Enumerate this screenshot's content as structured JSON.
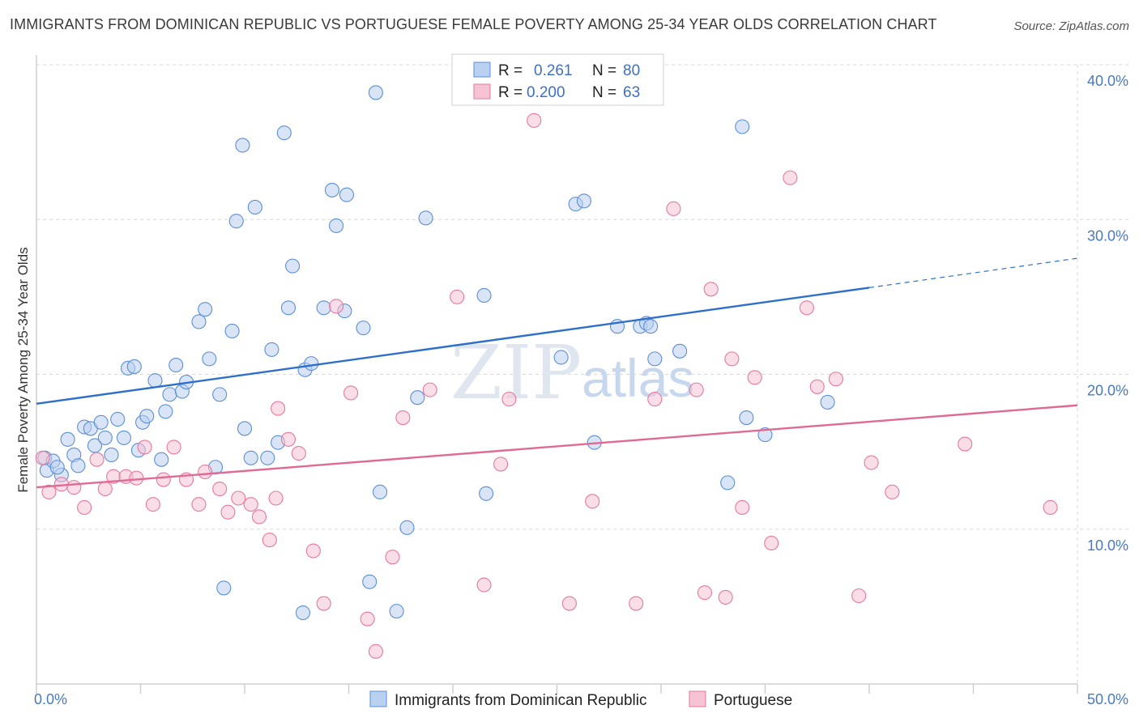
{
  "title": "IMMIGRANTS FROM DOMINICAN REPUBLIC VS PORTUGUESE FEMALE POVERTY AMONG 25-34 YEAR OLDS CORRELATION CHART",
  "source": "Source: ZipAtlas.com",
  "watermark": {
    "part1": "ZIP",
    "part2": "atlas"
  },
  "colors": {
    "blue": "#5b8fd6",
    "blue_fill": "#b9d0f1",
    "blue_line": "#2f6fcc",
    "pink": "#e6789e",
    "pink_fill": "#f6c3d4",
    "pink_line": "#e06a94",
    "grid": "#d9d9d9",
    "tick_text": "#4a78c2"
  },
  "legend": {
    "r_label": "R =",
    "n_label": "N =",
    "rows": [
      {
        "r": "0.261",
        "n": "80",
        "color": "blue"
      },
      {
        "r": "0.200",
        "n": "63",
        "color": "pink"
      }
    ]
  },
  "bottom_legend": [
    {
      "label": "Immigrants from Dominican Republic",
      "color": "blue"
    },
    {
      "label": "Portuguese",
      "color": "pink"
    }
  ],
  "chart_data": {
    "type": "scatter",
    "title": "IMMIGRANTS FROM DOMINICAN REPUBLIC VS PORTUGUESE FEMALE POVERTY AMONG 25-34 YEAR OLDS CORRELATION CHART",
    "xlabel": "",
    "ylabel": "Female Poverty Among 25-34 Year Olds",
    "xlim": [
      0,
      50
    ],
    "ylim": [
      0,
      40
    ],
    "x_ticks": [
      "0.0%",
      "50.0%"
    ],
    "y_ticks": [
      {
        "value": 10,
        "label": "10.0%"
      },
      {
        "value": 20,
        "label": "20.0%"
      },
      {
        "value": 30,
        "label": "30.0%"
      },
      {
        "value": 40,
        "label": "40.0%"
      }
    ],
    "grid": true,
    "legend_position": "top-center",
    "series": [
      {
        "name": "Immigrants from Dominican Republic",
        "color": "blue",
        "r": 0.261,
        "n": 80,
        "trend": {
          "x0": 0,
          "y0": 18.1,
          "x1": 40,
          "y1": 25.6,
          "dash_to_x": 50,
          "dash_to_y": 27.5
        },
        "points": [
          [
            0.4,
            14.6
          ],
          [
            0.5,
            13.8
          ],
          [
            0.8,
            14.4
          ],
          [
            1.2,
            13.5
          ],
          [
            1.0,
            14.0
          ],
          [
            1.5,
            15.8
          ],
          [
            1.8,
            14.8
          ],
          [
            2.0,
            14.1
          ],
          [
            2.3,
            16.6
          ],
          [
            2.6,
            16.5
          ],
          [
            2.8,
            15.4
          ],
          [
            3.1,
            16.9
          ],
          [
            3.3,
            15.9
          ],
          [
            3.6,
            14.8
          ],
          [
            3.9,
            17.1
          ],
          [
            4.2,
            15.9
          ],
          [
            4.4,
            20.4
          ],
          [
            4.7,
            20.5
          ],
          [
            4.9,
            15.1
          ],
          [
            5.1,
            16.9
          ],
          [
            5.3,
            17.3
          ],
          [
            5.7,
            19.6
          ],
          [
            6.0,
            14.5
          ],
          [
            6.2,
            17.6
          ],
          [
            6.4,
            18.7
          ],
          [
            6.7,
            20.6
          ],
          [
            7.0,
            18.9
          ],
          [
            7.2,
            19.5
          ],
          [
            7.8,
            23.4
          ],
          [
            8.1,
            24.2
          ],
          [
            8.3,
            21.0
          ],
          [
            8.6,
            14.0
          ],
          [
            8.8,
            18.7
          ],
          [
            9.0,
            6.2
          ],
          [
            9.4,
            22.8
          ],
          [
            9.6,
            29.9
          ],
          [
            9.9,
            34.8
          ],
          [
            10.3,
            14.6
          ],
          [
            10.5,
            30.8
          ],
          [
            10.0,
            16.5
          ],
          [
            11.1,
            14.6
          ],
          [
            11.3,
            21.6
          ],
          [
            11.6,
            15.6
          ],
          [
            11.9,
            35.6
          ],
          [
            12.3,
            27.0
          ],
          [
            12.1,
            24.3
          ],
          [
            12.9,
            20.3
          ],
          [
            13.2,
            20.7
          ],
          [
            12.8,
            4.6
          ],
          [
            13.8,
            24.3
          ],
          [
            14.2,
            31.9
          ],
          [
            14.4,
            29.6
          ],
          [
            14.8,
            24.1
          ],
          [
            14.9,
            31.6
          ],
          [
            15.7,
            23.0
          ],
          [
            16.0,
            6.6
          ],
          [
            16.3,
            38.2
          ],
          [
            16.5,
            12.4
          ],
          [
            17.3,
            4.7
          ],
          [
            17.8,
            10.1
          ],
          [
            18.3,
            18.5
          ],
          [
            18.7,
            30.1
          ],
          [
            21.5,
            25.1
          ],
          [
            21.6,
            12.3
          ],
          [
            25.2,
            21.1
          ],
          [
            25.9,
            31.0
          ],
          [
            26.3,
            31.2
          ],
          [
            26.8,
            15.6
          ],
          [
            27.9,
            23.1
          ],
          [
            29.0,
            23.1
          ],
          [
            29.3,
            23.3
          ],
          [
            29.5,
            23.1
          ],
          [
            29.7,
            21.0
          ],
          [
            30.9,
            21.5
          ],
          [
            33.2,
            13.0
          ],
          [
            33.9,
            36.0
          ],
          [
            34.1,
            17.2
          ],
          [
            35.0,
            16.1
          ],
          [
            38.0,
            18.2
          ],
          [
            21.1,
            38.6
          ]
        ]
      },
      {
        "name": "Portuguese",
        "color": "pink",
        "r": 0.2,
        "n": 63,
        "trend": {
          "x0": 0,
          "y0": 12.7,
          "x1": 50,
          "y1": 18.0
        },
        "points": [
          [
            0.3,
            14.6
          ],
          [
            0.6,
            12.4
          ],
          [
            1.2,
            12.9
          ],
          [
            1.8,
            12.7
          ],
          [
            2.3,
            11.4
          ],
          [
            2.9,
            14.5
          ],
          [
            3.3,
            12.6
          ],
          [
            3.7,
            13.4
          ],
          [
            4.3,
            13.4
          ],
          [
            4.8,
            13.3
          ],
          [
            5.2,
            15.3
          ],
          [
            5.6,
            11.6
          ],
          [
            6.1,
            13.2
          ],
          [
            6.6,
            15.3
          ],
          [
            7.2,
            13.2
          ],
          [
            7.8,
            11.6
          ],
          [
            8.1,
            13.7
          ],
          [
            8.8,
            12.6
          ],
          [
            9.2,
            11.1
          ],
          [
            9.7,
            12.0
          ],
          [
            10.3,
            11.6
          ],
          [
            10.7,
            10.8
          ],
          [
            11.2,
            9.3
          ],
          [
            11.6,
            17.8
          ],
          [
            12.1,
            15.8
          ],
          [
            12.6,
            14.9
          ],
          [
            13.3,
            8.6
          ],
          [
            13.8,
            5.2
          ],
          [
            14.4,
            24.4
          ],
          [
            15.1,
            18.8
          ],
          [
            15.9,
            4.2
          ],
          [
            16.3,
            2.1
          ],
          [
            17.1,
            8.2
          ],
          [
            17.6,
            17.2
          ],
          [
            18.9,
            19.0
          ],
          [
            20.2,
            25.0
          ],
          [
            21.5,
            6.4
          ],
          [
            22.3,
            14.2
          ],
          [
            22.7,
            18.4
          ],
          [
            23.9,
            36.4
          ],
          [
            25.6,
            5.2
          ],
          [
            26.7,
            11.8
          ],
          [
            28.8,
            5.2
          ],
          [
            29.7,
            18.4
          ],
          [
            30.6,
            30.7
          ],
          [
            31.7,
            19.0
          ],
          [
            32.1,
            5.9
          ],
          [
            32.4,
            25.5
          ],
          [
            33.1,
            5.6
          ],
          [
            33.4,
            21.0
          ],
          [
            33.9,
            11.4
          ],
          [
            34.5,
            19.8
          ],
          [
            35.3,
            9.1
          ],
          [
            36.2,
            32.7
          ],
          [
            37.0,
            24.3
          ],
          [
            37.5,
            19.2
          ],
          [
            38.4,
            19.7
          ],
          [
            39.5,
            5.7
          ],
          [
            40.1,
            14.3
          ],
          [
            41.1,
            12.4
          ],
          [
            44.6,
            15.5
          ],
          [
            48.7,
            11.4
          ],
          [
            11.5,
            12.0
          ]
        ]
      }
    ]
  }
}
